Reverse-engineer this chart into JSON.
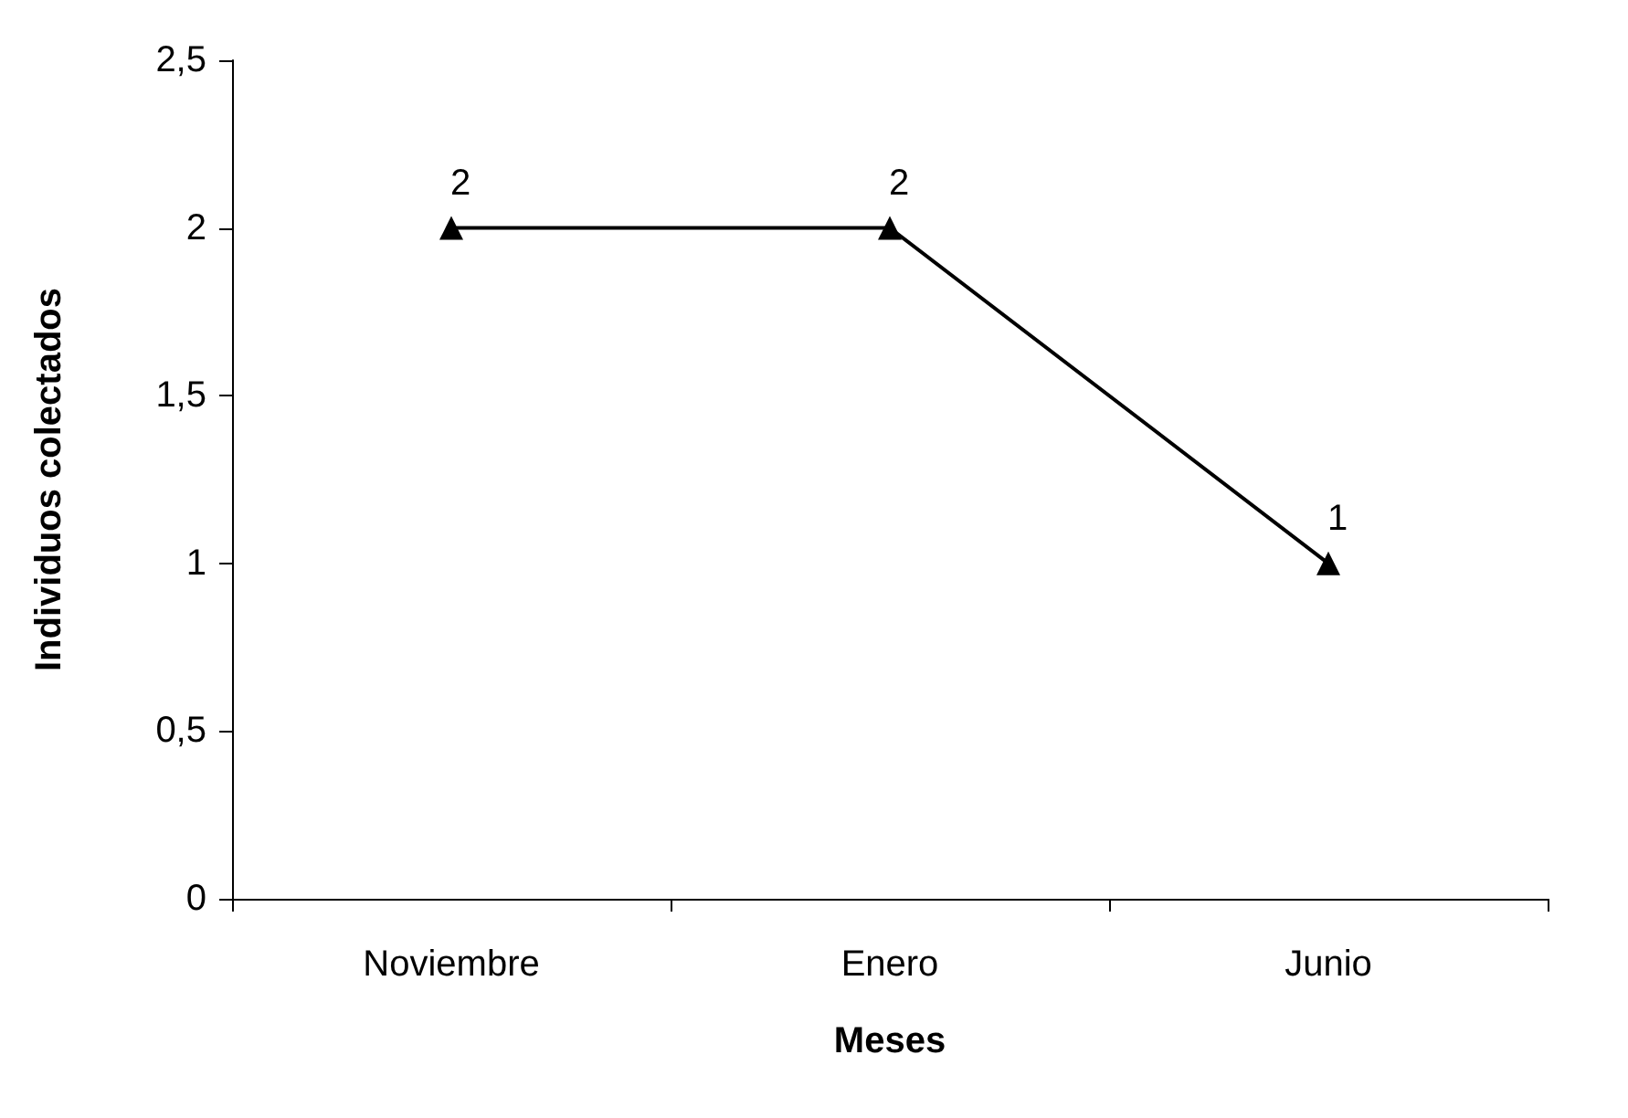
{
  "chart_data": {
    "type": "line",
    "xlabel": "Meses",
    "ylabel": "Individuos colectados",
    "categories": [
      "Noviembre",
      "Enero",
      "Junio"
    ],
    "series": [
      {
        "color": "#000000",
        "values": [
          2,
          2,
          1
        ]
      }
    ],
    "ylim": [
      0,
      2.5
    ],
    "yticks": [
      0,
      {
        "value": 0.5,
        "label": "0,5"
      },
      1,
      {
        "value": 1.5,
        "label": "1,5"
      },
      2,
      {
        "value": 2.5,
        "label": "2,5"
      }
    ],
    "data_labels": true,
    "marker": "triangle",
    "line_style": "solid"
  }
}
